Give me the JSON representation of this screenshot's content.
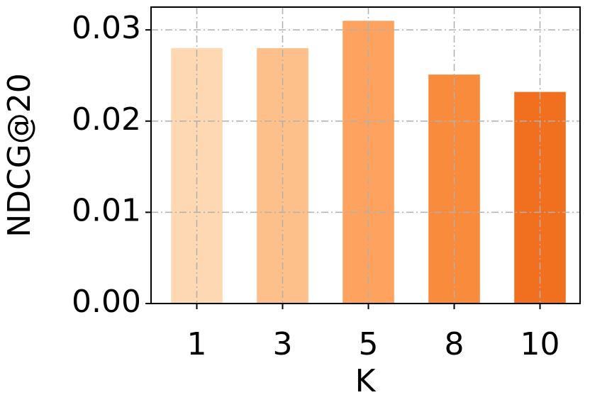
{
  "chart_data": {
    "type": "bar",
    "x_label": "K",
    "y_label": "NDCG@20",
    "categories": [
      "1",
      "3",
      "5",
      "8",
      "10"
    ],
    "values": [
      0.028,
      0.028,
      0.031,
      0.0251,
      0.0232
    ],
    "colors": [
      "#fdd8b3",
      "#fdc08a",
      "#fda35f",
      "#f98b3d",
      "#f07020"
    ],
    "ylim": [
      0,
      0.0325
    ],
    "yticks": [
      {
        "value": 0,
        "label": "0.00"
      },
      0.01,
      0.02,
      0.03
    ],
    "grid": true
  }
}
